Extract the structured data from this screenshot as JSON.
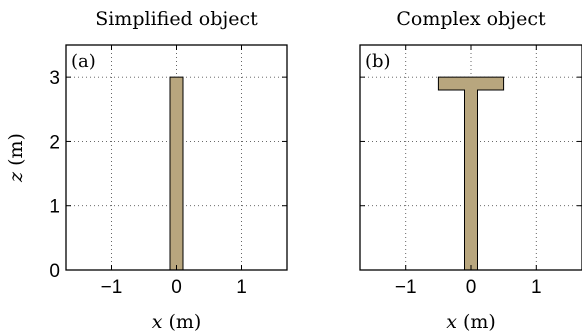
{
  "chart_data": [
    {
      "type": "area",
      "panel_label": "(a)",
      "title": "Simplified object",
      "xlabel": {
        "var": "x",
        "unit": "(m)"
      },
      "ylabel": {
        "var": "z",
        "unit": "(m)"
      },
      "xlim": [
        -1.7,
        1.7
      ],
      "ylim": [
        0,
        3.5
      ],
      "xticks": [
        -1,
        0,
        1
      ],
      "yticks": [
        0,
        1,
        2,
        3
      ],
      "grid": true,
      "fill_color": "#b8a67e",
      "polygon": [
        [
          -0.1,
          0
        ],
        [
          0.1,
          0
        ],
        [
          0.1,
          3.0
        ],
        [
          -0.1,
          3.0
        ]
      ]
    },
    {
      "type": "area",
      "panel_label": "(b)",
      "title": "Complex object",
      "xlabel": {
        "var": "x",
        "unit": "(m)"
      },
      "ylabel": {
        "var": "",
        "unit": ""
      },
      "xlim": [
        -1.7,
        1.7
      ],
      "ylim": [
        0,
        3.5
      ],
      "xticks": [
        -1,
        0,
        1
      ],
      "yticks": [
        0,
        1,
        2,
        3
      ],
      "grid": true,
      "fill_color": "#b8a67e",
      "polygon": [
        [
          -0.1,
          0
        ],
        [
          0.1,
          0
        ],
        [
          0.1,
          2.8
        ],
        [
          0.5,
          2.8
        ],
        [
          0.5,
          3.0
        ],
        [
          -0.5,
          3.0
        ],
        [
          -0.5,
          2.8
        ],
        [
          -0.1,
          2.8
        ]
      ]
    }
  ]
}
